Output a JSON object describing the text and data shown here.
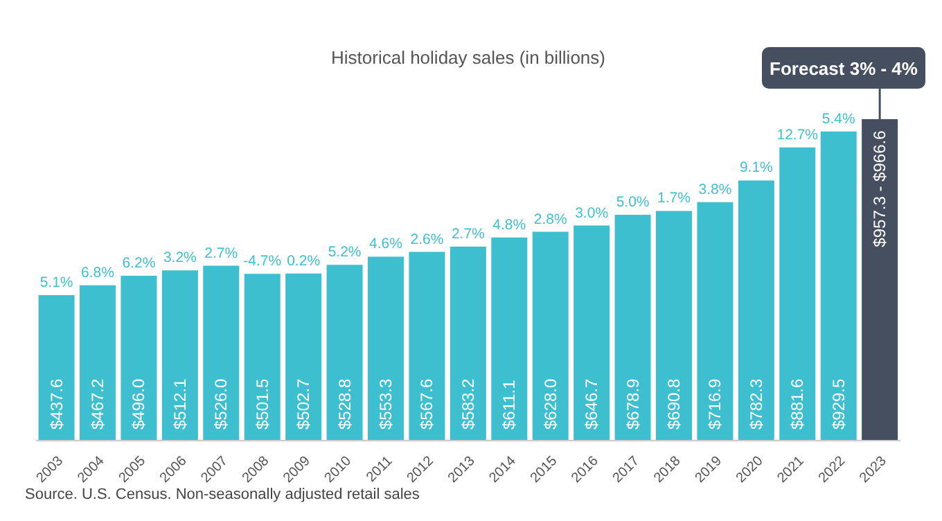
{
  "chart_data": {
    "type": "bar",
    "title": "Historical holiday sales (in billions)",
    "categories": [
      "2003",
      "2004",
      "2005",
      "2006",
      "2007",
      "2008",
      "2009",
      "2010",
      "2011",
      "2012",
      "2013",
      "2014",
      "2015",
      "2016",
      "2017",
      "2018",
      "2019",
      "2020",
      "2021",
      "2022",
      "2023"
    ],
    "values": [
      437.6,
      467.2,
      496.0,
      512.1,
      526.0,
      501.5,
      502.7,
      528.8,
      553.3,
      567.6,
      583.2,
      611.1,
      628.0,
      646.7,
      678.9,
      690.8,
      716.9,
      782.3,
      881.6,
      929.5,
      966.6
    ],
    "value_labels": [
      "$437.6",
      "$467.2",
      "$496.0",
      "$512.1",
      "$526.0",
      "$501.5",
      "$502.7",
      "$528.8",
      "$553.3",
      "$567.6",
      "$583.2",
      "$611.1",
      "$628.0",
      "$646.7",
      "$678.9",
      "$690.8",
      "$716.9",
      "$782.3",
      "$881.6",
      "$929.5",
      null
    ],
    "colors": [
      "#3ebfd0",
      "#3ebfd0",
      "#3ebfd0",
      "#3ebfd0",
      "#3ebfd0",
      "#3ebfd0",
      "#3ebfd0",
      "#3ebfd0",
      "#3ebfd0",
      "#3ebfd0",
      "#3ebfd0",
      "#3ebfd0",
      "#3ebfd0",
      "#3ebfd0",
      "#3ebfd0",
      "#3ebfd0",
      "#3ebfd0",
      "#3ebfd0",
      "#3ebfd0",
      "#3ebfd0",
      "#454f5f"
    ],
    "annotations": [
      {
        "text": "5.1%",
        "x": "2003",
        "y": 437.6
      },
      {
        "text": "6.8%",
        "x": "2004",
        "y": 467.2
      },
      {
        "text": "6.2%",
        "x": "2005",
        "y": 496.0
      },
      {
        "text": "3.2%",
        "x": "2006",
        "y": 512.1
      },
      {
        "text": "2.7%",
        "x": "2007",
        "y": 526.0
      },
      {
        "text": "-4.7%",
        "x": "2008",
        "y": 501.5
      },
      {
        "text": "0.2%",
        "x": "2009",
        "y": 502.7
      },
      {
        "text": "5.2%",
        "x": "2010",
        "y": 528.8
      },
      {
        "text": "4.6%",
        "x": "2011",
        "y": 553.3
      },
      {
        "text": "2.6%",
        "x": "2012",
        "y": 567.6
      },
      {
        "text": "2.7%",
        "x": "2013",
        "y": 583.2
      },
      {
        "text": "4.8%",
        "x": "2014",
        "y": 611.1
      },
      {
        "text": "2.8%",
        "x": "2015",
        "y": 628.0
      },
      {
        "text": "3.0%",
        "x": "2016",
        "y": 646.7
      },
      {
        "text": "5.0%",
        "x": "2017",
        "y": 678.9
      },
      {
        "text": "1.7%",
        "x": "2018",
        "y": 690.8
      },
      {
        "text": "3.8%",
        "x": "2019",
        "y": 716.9
      },
      {
        "text": "9.1%",
        "x": "2020",
        "y": 782.3
      },
      {
        "text": "12.7%",
        "x": "2021",
        "y": 881.6
      },
      {
        "text": "5.4%",
        "x": "2022",
        "y": 929.5
      },
      {
        "text": "$957.3 - $966.6",
        "x": "2023",
        "y": 957.3
      },
      {
        "text": "Forecast 3% - 4%",
        "x": "2023",
        "y": 966.6
      },
      "Source. U.S. Census. Non-seasonally adjusted retail sales"
    ]
  }
}
